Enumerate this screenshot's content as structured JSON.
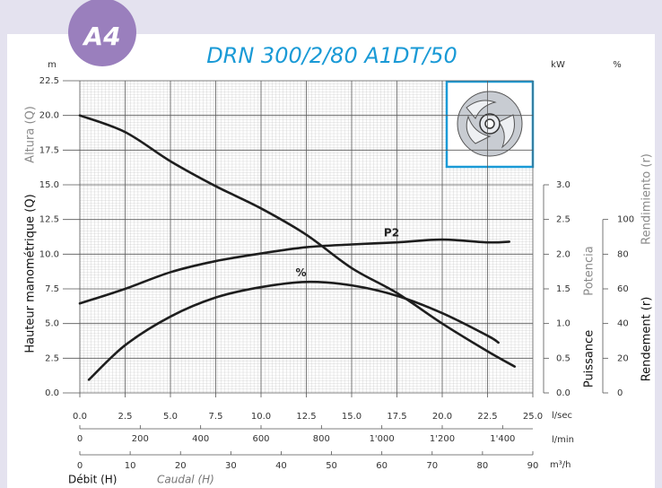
{
  "chart_data": {
    "type": "line",
    "badge": "A4",
    "title": "DRN 300/2/80 A1DT/50",
    "y_unit": "m",
    "y2_unit": "kW",
    "y3_unit": "%",
    "x_unit": "l/sec",
    "x2_unit": "l/min",
    "x3_unit": "m³/h",
    "y_label": [
      "Hauteur manométrique (Q)",
      "Altura (Q)"
    ],
    "y2_label": [
      "Puissance",
      "Potencia"
    ],
    "y3_label": [
      "Rendement (r)",
      "Rendimiento (r)"
    ],
    "x_label": [
      "Débit (H)",
      "Caudal (H)"
    ],
    "xlim": [
      0,
      25
    ],
    "xticks": [
      {
        "value": 0,
        "label": "0.0"
      },
      2.5,
      {
        "value": 5,
        "label": "5.0"
      },
      7.5,
      {
        "value": 10,
        "label": "10.0"
      },
      12.5,
      {
        "value": 15,
        "label": "15.0"
      },
      17.5,
      {
        "value": 20,
        "label": "20.0"
      },
      22.5,
      {
        "value": 25,
        "label": "25.0"
      }
    ],
    "x2lim": [
      0,
      1500
    ],
    "x2ticks": [
      0,
      200,
      400,
      600,
      800,
      {
        "value": 1000,
        "label": "1'000"
      },
      {
        "value": 1200,
        "label": "1'200"
      },
      {
        "value": 1400,
        "label": "1'400"
      }
    ],
    "x3lim": [
      0,
      90
    ],
    "x3ticks": [
      0,
      10,
      20,
      30,
      40,
      50,
      60,
      70,
      80,
      90
    ],
    "ylim": [
      0,
      22.5
    ],
    "yticks": [
      {
        "value": 0,
        "label": "0.0"
      },
      2.5,
      {
        "value": 5,
        "label": "5.0"
      },
      7.5,
      {
        "value": 10,
        "label": "10.0"
      },
      12.5,
      {
        "value": 15,
        "label": "15.0"
      },
      17.5,
      {
        "value": 20,
        "label": "20.0"
      },
      22.5
    ],
    "y2lim": [
      0,
      4.5
    ],
    "y2ticks": [
      {
        "value": 0,
        "label": "0.0"
      },
      0.5,
      {
        "value": 1,
        "label": "1.0"
      },
      1.5,
      {
        "value": 2,
        "label": "2.0"
      },
      2.5,
      {
        "value": 3,
        "label": "3.0"
      }
    ],
    "y3lim": [
      0,
      180
    ],
    "y3ticks": [
      0,
      20,
      40,
      60,
      80,
      100
    ],
    "grid": true,
    "series": [
      {
        "color": "#1e1e1e",
        "axis": "y",
        "x": [
          0,
          2.5,
          5,
          7.5,
          10,
          12.5,
          15,
          17.5,
          20,
          22.5,
          24
        ],
        "values": [
          20.0,
          18.8,
          16.7,
          14.9,
          13.3,
          11.4,
          9.0,
          7.2,
          5.0,
          3.0,
          1.9
        ]
      },
      {
        "name": "P2",
        "color": "#1e1e1e",
        "axis": "y2",
        "x": [
          0,
          2.5,
          5,
          7.5,
          10,
          12.5,
          15,
          17.5,
          20,
          22.5,
          23.7
        ],
        "values": [
          1.29,
          1.5,
          1.74,
          1.9,
          2.01,
          2.1,
          2.14,
          2.17,
          2.21,
          2.17,
          2.18
        ]
      },
      {
        "name": "%",
        "color": "#1e1e1e",
        "axis": "y3",
        "x": [
          0.5,
          2.5,
          5,
          7.5,
          10,
          12.5,
          15,
          17.5,
          20,
          22.5,
          23.1
        ],
        "values": [
          7.6,
          27.5,
          44,
          55,
          61,
          64,
          62,
          56,
          46,
          33,
          29
        ]
      }
    ]
  }
}
